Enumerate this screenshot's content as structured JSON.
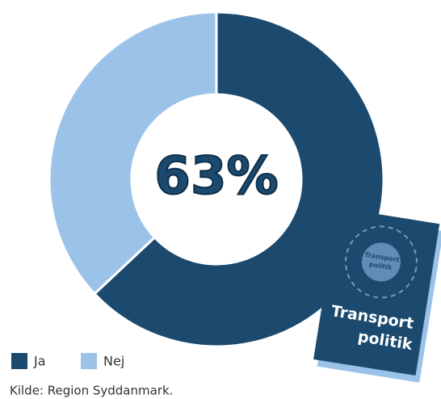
{
  "chart_data": {
    "type": "donut",
    "categories": [
      "Ja",
      "Nej"
    ],
    "values": [
      63,
      37
    ],
    "colors": [
      "#1b4a6e",
      "#9bc3ea"
    ],
    "center_label": "63%",
    "legend": "bottom-left",
    "source": "Kilde: Region Syddanmark."
  },
  "illustration": {
    "badge": [
      "Transport",
      "politik"
    ],
    "title": [
      "Transport",
      "politik"
    ]
  }
}
